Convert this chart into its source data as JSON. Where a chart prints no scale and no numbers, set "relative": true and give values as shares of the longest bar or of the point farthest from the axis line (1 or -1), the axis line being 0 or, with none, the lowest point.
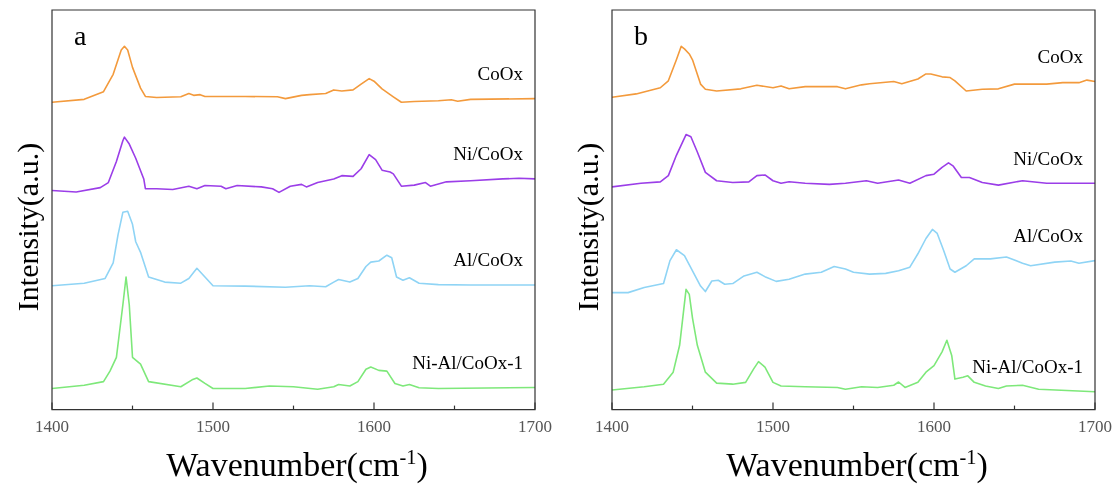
{
  "chart_data": [
    {
      "type": "line",
      "title": "a",
      "xlabel": "Wavenumber(cm$^{-1}$)",
      "ylabel": "Intensity(a.u.)",
      "relative": true,
      "xlim": [
        1400,
        1700
      ],
      "xticks": [
        1400,
        {
          "value": 1450,
          "label": null
        },
        1500,
        {
          "value": 1550,
          "label": null
        },
        1600,
        {
          "value": 1650,
          "label": null
        },
        1700
      ],
      "tick_labels": "x",
      "grid": false,
      "legend": false,
      "marker": "none",
      "line_style": "solid",
      "series": [
        {
          "name": "CoOx",
          "color": "#f39a3c",
          "x": [
            1400,
            1420,
            1432,
            1438,
            1443,
            1445,
            1447,
            1450,
            1455,
            1458,
            1465,
            1480,
            1485,
            1488,
            1492,
            1495,
            1520,
            1540,
            1545,
            1555,
            1560,
            1570,
            1575,
            1580,
            1587,
            1592,
            1597,
            1600,
            1605,
            1612,
            1617,
            1625,
            1640,
            1648,
            1652,
            1660,
            1700
          ],
          "values": [
            0.846,
            0.854,
            0.875,
            0.923,
            0.99,
            1,
            0.99,
            0.942,
            0.885,
            0.862,
            0.859,
            0.861,
            0.87,
            0.865,
            0.867,
            0.862,
            0.862,
            0.861,
            0.856,
            0.865,
            0.867,
            0.87,
            0.88,
            0.877,
            0.88,
            0.896,
            0.911,
            0.904,
            0.883,
            0.861,
            0.846,
            0.848,
            0.85,
            0.853,
            0.849,
            0.854,
            0.856
          ]
        },
        {
          "name": "Ni/CoOx",
          "color": "#9b3ee8",
          "x": [
            1400,
            1415,
            1430,
            1435,
            1440,
            1444,
            1445,
            1448,
            1452,
            1457,
            1458,
            1465,
            1475,
            1485,
            1490,
            1495,
            1505,
            1508,
            1515,
            1530,
            1537,
            1541,
            1548,
            1555,
            1558,
            1565,
            1575,
            1580,
            1587,
            1592,
            1597,
            1601,
            1605,
            1610,
            1612,
            1617,
            1625,
            1632,
            1635,
            1645,
            1660,
            1680,
            1690,
            1700
          ],
          "values": [
            0.603,
            0.599,
            0.611,
            0.625,
            0.683,
            0.74,
            0.75,
            0.731,
            0.692,
            0.635,
            0.608,
            0.608,
            0.606,
            0.615,
            0.608,
            0.617,
            0.615,
            0.608,
            0.617,
            0.613,
            0.608,
            0.598,
            0.615,
            0.62,
            0.613,
            0.625,
            0.635,
            0.644,
            0.642,
            0.663,
            0.702,
            0.688,
            0.659,
            0.654,
            0.649,
            0.615,
            0.618,
            0.625,
            0.615,
            0.627,
            0.63,
            0.635,
            0.637,
            0.635
          ]
        },
        {
          "name": "Al/CoOx",
          "color": "#8fd4f5",
          "x": [
            1400,
            1420,
            1433,
            1438,
            1441,
            1444,
            1447,
            1450,
            1452,
            1455,
            1460,
            1470,
            1480,
            1485,
            1490,
            1495,
            1500,
            1520,
            1545,
            1560,
            1570,
            1575,
            1578,
            1585,
            1590,
            1595,
            1598,
            1603,
            1608,
            1611,
            1614,
            1618,
            1622,
            1628,
            1640,
            1660,
            1700
          ],
          "values": [
            0.341,
            0.348,
            0.361,
            0.404,
            0.481,
            0.543,
            0.546,
            0.51,
            0.462,
            0.433,
            0.365,
            0.351,
            0.348,
            0.361,
            0.389,
            0.365,
            0.341,
            0.34,
            0.337,
            0.341,
            0.338,
            0.351,
            0.358,
            0.351,
            0.361,
            0.394,
            0.406,
            0.409,
            0.425,
            0.418,
            0.365,
            0.356,
            0.363,
            0.348,
            0.344,
            0.343,
            0.343
          ]
        },
        {
          "name": "Ni-Al/CoOx-1",
          "color": "#7ee87a",
          "x": [
            1400,
            1420,
            1432,
            1436,
            1440,
            1444,
            1446,
            1448,
            1450,
            1455,
            1460,
            1480,
            1487,
            1490,
            1495,
            1500,
            1520,
            1535,
            1550,
            1565,
            1575,
            1578,
            1585,
            1590,
            1595,
            1598,
            1603,
            1608,
            1613,
            1618,
            1622,
            1628,
            1640,
            1700
          ],
          "values": [
            0.058,
            0.067,
            0.077,
            0.106,
            0.144,
            0.288,
            0.365,
            0.288,
            0.144,
            0.125,
            0.077,
            0.063,
            0.082,
            0.087,
            0.072,
            0.058,
            0.058,
            0.065,
            0.063,
            0.056,
            0.063,
            0.069,
            0.065,
            0.077,
            0.111,
            0.117,
            0.108,
            0.106,
            0.072,
            0.065,
            0.069,
            0.06,
            0.058,
            0.061
          ]
        }
      ]
    },
    {
      "type": "line",
      "title": "b",
      "xlabel": "Wavenumber(cm$^{-1}$)",
      "ylabel": "Intensity(a.u.)",
      "relative": true,
      "xlim": [
        1400,
        1700
      ],
      "xticks": [
        1400,
        {
          "value": 1450,
          "label": null
        },
        1500,
        {
          "value": 1550,
          "label": null
        },
        1600,
        {
          "value": 1650,
          "label": null
        },
        1700
      ],
      "tick_labels": "x",
      "grid": false,
      "legend": false,
      "marker": "none",
      "line_style": "solid",
      "series": [
        {
          "name": "CoOx",
          "color": "#f39a3c",
          "x": [
            1400,
            1415,
            1430,
            1435,
            1440,
            1443,
            1445,
            1448,
            1450,
            1455,
            1458,
            1465,
            1480,
            1490,
            1500,
            1505,
            1510,
            1520,
            1540,
            1545,
            1555,
            1560,
            1575,
            1580,
            1590,
            1595,
            1598,
            1605,
            1610,
            1613,
            1620,
            1630,
            1640,
            1650,
            1670,
            1680,
            1690,
            1695,
            1700
          ],
          "values": [
            0.86,
            0.869,
            0.886,
            0.905,
            0.963,
            1,
            0.993,
            0.979,
            0.963,
            0.896,
            0.882,
            0.877,
            0.883,
            0.893,
            0.886,
            0.891,
            0.883,
            0.889,
            0.889,
            0.883,
            0.894,
            0.897,
            0.903,
            0.897,
            0.91,
            0.924,
            0.924,
            0.916,
            0.914,
            0.905,
            0.877,
            0.882,
            0.883,
            0.896,
            0.896,
            0.9,
            0.9,
            0.907,
            0.903
          ]
        },
        {
          "name": "Ni/CoOx",
          "color": "#9b3ee8",
          "x": [
            1400,
            1418,
            1430,
            1435,
            1440,
            1446,
            1449,
            1453,
            1458,
            1465,
            1475,
            1485,
            1490,
            1495,
            1500,
            1505,
            1510,
            1520,
            1535,
            1545,
            1558,
            1565,
            1578,
            1585,
            1595,
            1600,
            1605,
            1609,
            1612,
            1617,
            1622,
            1630,
            1640,
            1655,
            1670,
            1700
          ],
          "values": [
            0.613,
            0.623,
            0.627,
            0.644,
            0.7,
            0.757,
            0.751,
            0.709,
            0.653,
            0.63,
            0.625,
            0.627,
            0.644,
            0.646,
            0.63,
            0.623,
            0.627,
            0.623,
            0.62,
            0.623,
            0.63,
            0.623,
            0.632,
            0.623,
            0.644,
            0.648,
            0.667,
            0.679,
            0.67,
            0.639,
            0.639,
            0.625,
            0.618,
            0.63,
            0.623,
            0.623
          ]
        },
        {
          "name": "Al/CoOx",
          "color": "#8fd4f5",
          "x": [
            1400,
            1410,
            1420,
            1432,
            1436,
            1440,
            1445,
            1450,
            1455,
            1458,
            1462,
            1466,
            1470,
            1475,
            1482,
            1490,
            1495,
            1502,
            1510,
            1520,
            1530,
            1538,
            1545,
            1550,
            1560,
            1570,
            1578,
            1585,
            1590,
            1595,
            1599,
            1602,
            1606,
            1610,
            1613,
            1620,
            1625,
            1635,
            1645,
            1655,
            1660,
            1675,
            1685,
            1690,
            1700
          ],
          "values": [
            0.322,
            0.322,
            0.336,
            0.347,
            0.41,
            0.44,
            0.424,
            0.382,
            0.34,
            0.325,
            0.354,
            0.356,
            0.345,
            0.347,
            0.368,
            0.378,
            0.366,
            0.353,
            0.359,
            0.373,
            0.378,
            0.394,
            0.387,
            0.378,
            0.373,
            0.375,
            0.382,
            0.392,
            0.429,
            0.471,
            0.496,
            0.485,
            0.438,
            0.387,
            0.378,
            0.396,
            0.415,
            0.415,
            0.42,
            0.403,
            0.396,
            0.406,
            0.409,
            0.403,
            0.41
          ]
        },
        {
          "name": "Ni-Al/CoOx-1",
          "color": "#7ee87a",
          "x": [
            1400,
            1420,
            1432,
            1438,
            1442,
            1446,
            1448,
            1450,
            1453,
            1458,
            1465,
            1475,
            1483,
            1488,
            1491,
            1495,
            1500,
            1505,
            1520,
            1540,
            1545,
            1555,
            1565,
            1575,
            1578,
            1582,
            1590,
            1595,
            1600,
            1605,
            1608,
            1611,
            1613,
            1618,
            1621,
            1625,
            1632,
            1640,
            1645,
            1655,
            1665,
            1700
          ],
          "values": [
            0.054,
            0.063,
            0.07,
            0.103,
            0.177,
            0.331,
            0.317,
            0.252,
            0.177,
            0.103,
            0.073,
            0.07,
            0.075,
            0.112,
            0.132,
            0.117,
            0.075,
            0.065,
            0.063,
            0.061,
            0.056,
            0.063,
            0.061,
            0.067,
            0.076,
            0.061,
            0.075,
            0.103,
            0.121,
            0.159,
            0.191,
            0.149,
            0.084,
            0.089,
            0.093,
            0.075,
            0.065,
            0.058,
            0.065,
            0.067,
            0.056,
            0.049
          ]
        }
      ]
    }
  ]
}
